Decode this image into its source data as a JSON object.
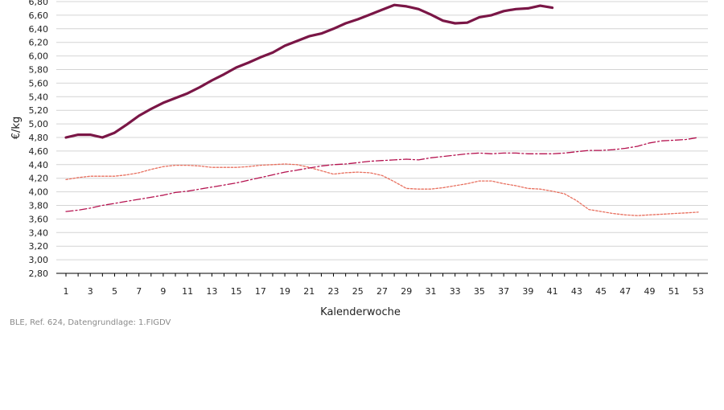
{
  "chart_data": {
    "type": "line",
    "xlabel": "Kalenderwoche",
    "ylabel": "€/kg",
    "ylim": [
      2.8,
      6.8
    ],
    "y_step": 0.2,
    "xlim": [
      1,
      53
    ],
    "x_tick_labels": [
      "1",
      "3",
      "5",
      "7",
      "9",
      "11",
      "13",
      "15",
      "17",
      "19",
      "21",
      "23",
      "25",
      "27",
      "29",
      "31",
      "33",
      "35",
      "37",
      "39",
      "41",
      "43",
      "45",
      "47",
      "49",
      "51",
      "53"
    ],
    "grid": "horizontal",
    "source": "BLE, Ref. 624, Datengrundlage: 1.FIGDV",
    "series": [
      {
        "style": "solid-thick",
        "color": "#7a1646",
        "x": [
          1,
          2,
          3,
          4,
          5,
          6,
          7,
          8,
          9,
          10,
          11,
          12,
          13,
          14,
          15,
          16,
          17,
          18,
          19,
          20,
          21,
          22,
          23,
          24,
          25,
          26,
          27,
          28,
          29,
          30,
          31,
          32,
          33,
          34,
          35,
          36,
          37,
          38,
          39,
          40,
          41
        ],
        "values": [
          4.8,
          4.84,
          4.84,
          4.8,
          4.87,
          4.99,
          5.12,
          5.22,
          5.31,
          5.38,
          5.45,
          5.54,
          5.64,
          5.73,
          5.83,
          5.9,
          5.98,
          6.05,
          6.15,
          6.22,
          6.29,
          6.33,
          6.4,
          6.48,
          6.54,
          6.61,
          6.68,
          6.75,
          6.73,
          6.69,
          6.61,
          6.52,
          6.48,
          6.49,
          6.57,
          6.6,
          6.66,
          6.69,
          6.7,
          6.74,
          6.71
        ]
      },
      {
        "style": "dotted",
        "color": "#e8705f",
        "x": [
          1,
          2,
          3,
          4,
          5,
          6,
          7,
          8,
          9,
          10,
          11,
          12,
          13,
          14,
          15,
          16,
          17,
          18,
          19,
          20,
          21,
          22,
          23,
          24,
          25,
          26,
          27,
          28,
          29,
          30,
          31,
          32,
          33,
          34,
          35,
          36,
          37,
          38,
          39,
          40,
          41,
          42,
          43,
          44,
          45,
          46,
          47,
          48,
          49,
          50,
          51,
          52,
          53
        ],
        "values": [
          4.18,
          4.21,
          4.23,
          4.23,
          4.23,
          4.25,
          4.28,
          4.33,
          4.37,
          4.39,
          4.39,
          4.38,
          4.36,
          4.36,
          4.36,
          4.37,
          4.39,
          4.4,
          4.41,
          4.4,
          4.36,
          4.31,
          4.26,
          4.28,
          4.29,
          4.28,
          4.24,
          4.15,
          4.05,
          4.04,
          4.04,
          4.06,
          4.09,
          4.12,
          4.16,
          4.16,
          4.12,
          4.09,
          4.05,
          4.04,
          4.01,
          3.97,
          3.87,
          3.74,
          3.71,
          3.68,
          3.66,
          3.65,
          3.66,
          3.67,
          3.68,
          3.69,
          3.7
        ]
      },
      {
        "style": "dash-dot",
        "color": "#b5124f",
        "x": [
          1,
          2,
          3,
          4,
          5,
          6,
          7,
          8,
          9,
          10,
          11,
          12,
          13,
          14,
          15,
          16,
          17,
          18,
          19,
          20,
          21,
          22,
          23,
          24,
          25,
          26,
          27,
          28,
          29,
          30,
          31,
          32,
          33,
          34,
          35,
          36,
          37,
          38,
          39,
          40,
          41,
          42,
          43,
          44,
          45,
          46,
          47,
          48,
          49,
          50,
          51,
          52,
          53
        ],
        "values": [
          3.71,
          3.73,
          3.76,
          3.8,
          3.83,
          3.86,
          3.89,
          3.92,
          3.95,
          3.99,
          4.01,
          4.04,
          4.07,
          4.1,
          4.13,
          4.17,
          4.21,
          4.25,
          4.29,
          4.32,
          4.35,
          4.38,
          4.4,
          4.41,
          4.43,
          4.45,
          4.46,
          4.47,
          4.48,
          4.47,
          4.5,
          4.52,
          4.54,
          4.56,
          4.57,
          4.56,
          4.57,
          4.57,
          4.56,
          4.56,
          4.56,
          4.57,
          4.59,
          4.61,
          4.61,
          4.62,
          4.64,
          4.67,
          4.72,
          4.75,
          4.76,
          4.77,
          4.8
        ]
      }
    ]
  }
}
